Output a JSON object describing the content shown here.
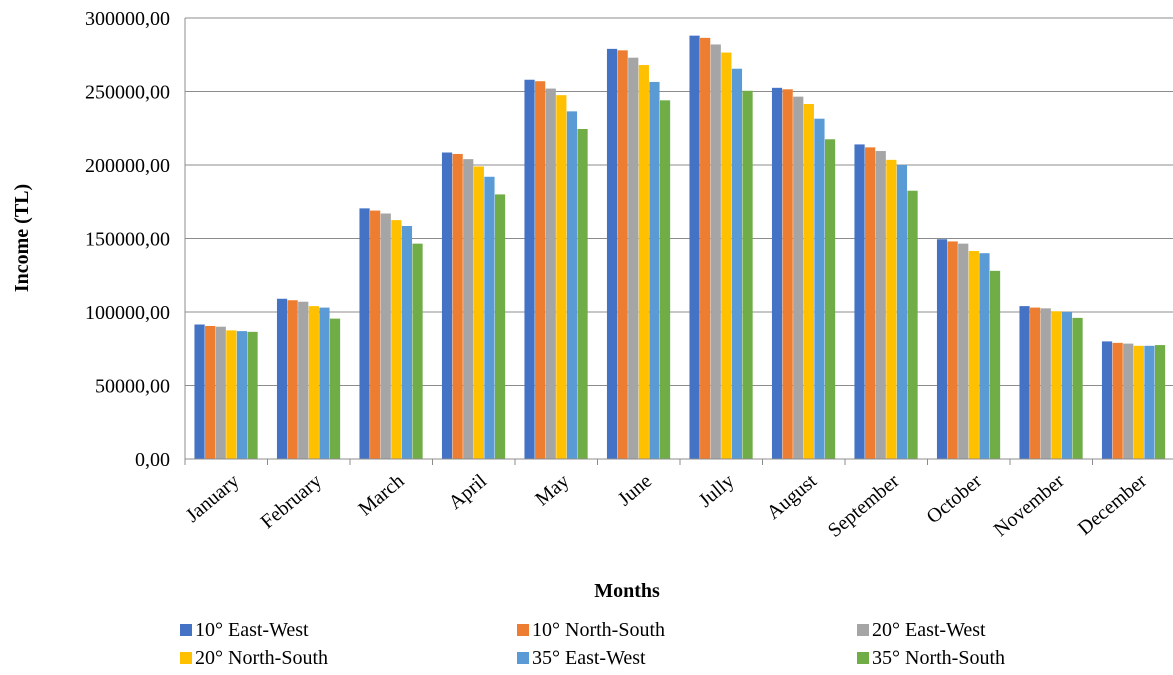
{
  "chart_data": {
    "type": "bar",
    "title": "",
    "xlabel": "Months",
    "ylabel": "Income (TL)",
    "ylim": [
      0,
      300000
    ],
    "yticks": [
      0,
      50000,
      100000,
      150000,
      200000,
      250000,
      300000
    ],
    "ytick_labels": [
      "0,00",
      "50000,00",
      "100000,00",
      "150000,00",
      "200000,00",
      "250000,00",
      "300000,00"
    ],
    "grid": "horizontal",
    "legend_position": "bottom",
    "categories": [
      "January",
      "February",
      "March",
      "April",
      "May",
      "June",
      "Jully",
      "August",
      "September",
      "October",
      "November",
      "December"
    ],
    "series": [
      {
        "name": "10° East-West",
        "color": "#4472C4",
        "values": [
          91500,
          109000,
          170500,
          208500,
          258000,
          279000,
          288000,
          252500,
          214000,
          149500,
          104000,
          80000
        ]
      },
      {
        "name": "10° North-South",
        "color": "#ED7D31",
        "values": [
          90500,
          108000,
          169000,
          207500,
          257000,
          278000,
          286500,
          251500,
          212000,
          148000,
          103000,
          79000
        ]
      },
      {
        "name": "20° East-West",
        "color": "#A5A5A5",
        "values": [
          90000,
          107000,
          167000,
          204000,
          252000,
          273000,
          282000,
          246500,
          209500,
          146500,
          102500,
          78500
        ]
      },
      {
        "name": "20° North-South",
        "color": "#FFC000",
        "values": [
          87500,
          104000,
          162500,
          199000,
          247500,
          268000,
          276500,
          241500,
          203500,
          141500,
          100500,
          77000
        ]
      },
      {
        "name": "35° East-West",
        "color": "#5B9BD5",
        "values": [
          87000,
          103000,
          158500,
          192000,
          236500,
          256500,
          265500,
          231500,
          200000,
          140000,
          100000,
          77000
        ]
      },
      {
        "name": "35° North-South",
        "color": "#70AD47",
        "values": [
          86500,
          95500,
          146500,
          180000,
          224500,
          244000,
          250500,
          217500,
          182500,
          128000,
          96000,
          77500
        ]
      }
    ]
  }
}
